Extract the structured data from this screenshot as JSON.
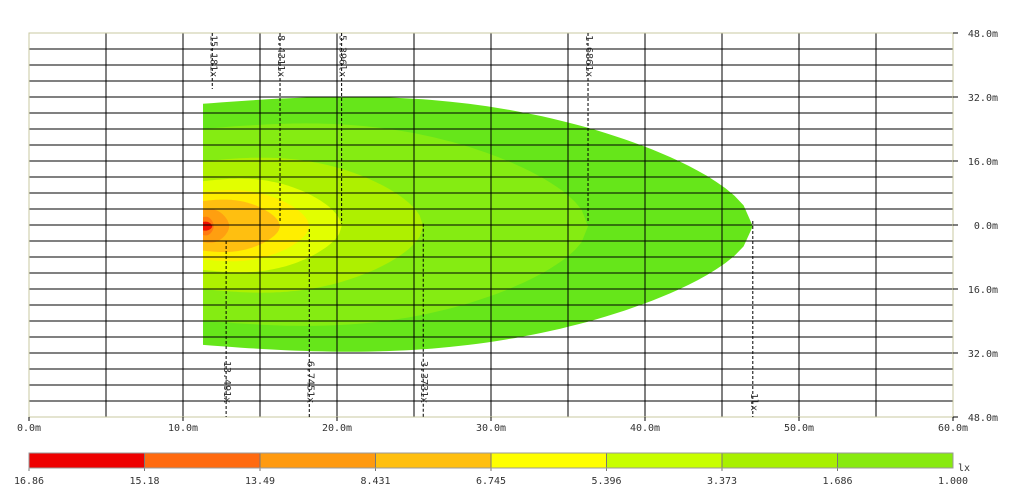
{
  "chart_data": {
    "type": "heatmap",
    "title": "",
    "xlabel": "",
    "ylabel": "",
    "x_ticks": [
      "0.0m",
      "10.0m",
      "20.0m",
      "30.0m",
      "40.0m",
      "50.0m",
      "60.0m"
    ],
    "y_ticks": [
      "48.0m",
      "32.0m",
      "16.0m",
      "0.0m",
      "16.0m",
      "32.0m",
      "48.0m"
    ],
    "xlim": [
      0,
      60
    ],
    "ylim": [
      -48,
      48
    ],
    "grid": true,
    "contours": [
      {
        "level": 1.0,
        "label": "1lx",
        "color": "#66e61a",
        "max_x": 47.0,
        "half_width": 34.0
      },
      {
        "level": 1.686,
        "label": "1.686lx",
        "color": "#85ec12",
        "max_x": 36.3,
        "half_width": 27.0
      },
      {
        "level": 3.373,
        "label": "3.373lx",
        "color": "#aef000",
        "max_x": 25.6,
        "half_width": 18.0
      },
      {
        "level": 5.396,
        "label": "5.396lx",
        "color": "#e2ff00",
        "max_x": 20.3,
        "half_width": 12.5
      },
      {
        "level": 6.745,
        "label": "6.745lx",
        "color": "#ffee00",
        "max_x": 18.2,
        "half_width": 9.5
      },
      {
        "level": 8.431,
        "label": "8.431lx",
        "color": "#ffbf10",
        "max_x": 16.3,
        "half_width": 7.0
      },
      {
        "level": 13.49,
        "label": "13.491x",
        "color": "#ff9f10",
        "max_x": 13.0,
        "half_width": 4.5
      },
      {
        "level": 15.18,
        "label": "15.181x",
        "color": "#ff7a10",
        "max_x": 12.0,
        "half_width": 2.5
      },
      {
        "level": 16.86,
        "label": "",
        "color": "#ee1000",
        "max_x": 11.9,
        "half_width": 1.2
      }
    ],
    "top_labels": [
      "15.181x",
      "8.4311x",
      "5.396lx",
      "1.6861x"
    ],
    "bottom_labels": [
      "13.491x",
      "6.7451x",
      "3.3731x",
      "1lx"
    ],
    "legend": {
      "unit": "lx",
      "values": [
        "16.86",
        "15.18",
        "13.49",
        "8.431",
        "6.745",
        "5.396",
        "3.373",
        "1.686",
        "1.000"
      ],
      "colors": [
        "#ee0000",
        "#ff6a10",
        "#ff9a10",
        "#ffbf10",
        "#ffff00",
        "#c8ff00",
        "#a8f000",
        "#88ea10",
        "#66e81a"
      ]
    }
  }
}
